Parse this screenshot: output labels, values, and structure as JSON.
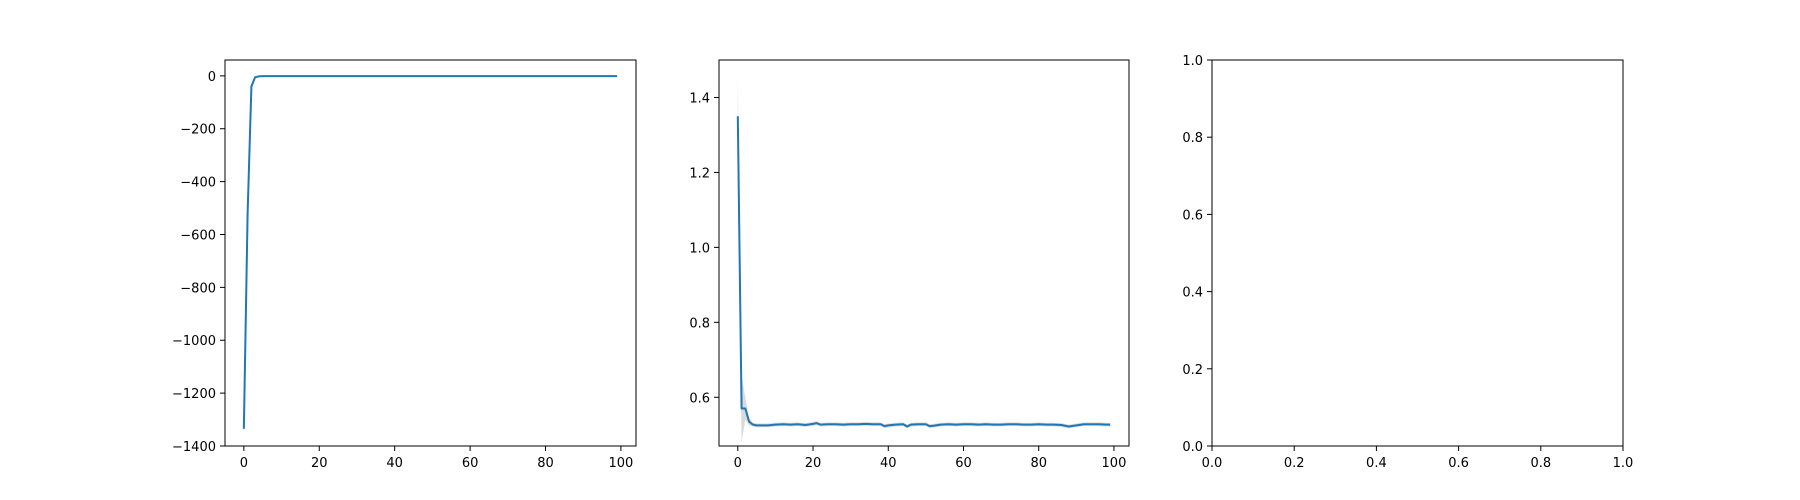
{
  "chart_data": [
    {
      "type": "line",
      "xlim": [
        -5,
        104
      ],
      "ylim": [
        -1400,
        60
      ],
      "xticks": [
        0,
        20,
        40,
        60,
        80,
        100
      ],
      "xtick_labels": [
        "0",
        "20",
        "40",
        "60",
        "80",
        "100"
      ],
      "yticks": [
        0,
        -200,
        -400,
        -600,
        -800,
        -1000,
        -1200,
        -1400
      ],
      "ytick_labels": [
        "0",
        "−200",
        "−400",
        "−600",
        "−800",
        "−1000",
        "−1200",
        "−1400"
      ],
      "line_color": "#1f77b4",
      "series": [
        {
          "x": [
            0,
            1,
            2,
            3,
            4,
            5,
            6,
            8,
            10,
            15,
            20,
            25,
            30,
            35,
            40,
            45,
            50,
            55,
            60,
            65,
            70,
            75,
            80,
            85,
            90,
            95,
            99
          ],
          "y": [
            -1335,
            -520,
            -40,
            -5,
            -2,
            -1,
            -1,
            -1,
            -1,
            -1,
            -1,
            -1,
            -1,
            -1,
            -1,
            -1,
            -1,
            -1,
            -1,
            -1,
            -1,
            -1,
            -1,
            -1,
            -1,
            -1,
            -1
          ]
        }
      ]
    },
    {
      "type": "line",
      "xlim": [
        -5,
        104
      ],
      "ylim": [
        0.47,
        1.5
      ],
      "xticks": [
        0,
        20,
        40,
        60,
        80,
        100
      ],
      "xtick_labels": [
        "0",
        "20",
        "40",
        "60",
        "80",
        "100"
      ],
      "yticks": [
        0.6,
        0.8,
        1.0,
        1.2,
        1.4
      ],
      "ytick_labels": [
        "0.6",
        "0.8",
        "1.0",
        "1.2",
        "1.4"
      ],
      "line_color": "#1f77b4",
      "band_color": "#d3d3d3",
      "series": [
        {
          "x": [
            0,
            1,
            2,
            3,
            4,
            5,
            6,
            8,
            10,
            12,
            14,
            16,
            18,
            20,
            21,
            22,
            24,
            26,
            28,
            30,
            32,
            34,
            36,
            38,
            39,
            40,
            42,
            44,
            45,
            46,
            48,
            50,
            51,
            52,
            54,
            56,
            58,
            60,
            62,
            64,
            66,
            68,
            70,
            72,
            74,
            76,
            78,
            80,
            82,
            84,
            86,
            88,
            90,
            92,
            94,
            96,
            98,
            99
          ],
          "y": [
            1.35,
            0.57,
            0.57,
            0.535,
            0.527,
            0.525,
            0.525,
            0.525,
            0.527,
            0.528,
            0.527,
            0.528,
            0.526,
            0.529,
            0.531,
            0.527,
            0.528,
            0.528,
            0.527,
            0.528,
            0.528,
            0.529,
            0.528,
            0.528,
            0.523,
            0.525,
            0.527,
            0.528,
            0.522,
            0.527,
            0.528,
            0.528,
            0.523,
            0.524,
            0.527,
            0.528,
            0.527,
            0.528,
            0.528,
            0.527,
            0.528,
            0.527,
            0.527,
            0.528,
            0.528,
            0.527,
            0.527,
            0.528,
            0.527,
            0.527,
            0.526,
            0.522,
            0.525,
            0.528,
            0.528,
            0.528,
            0.527,
            0.527
          ],
          "band_upper": [
            1.45,
            0.66,
            0.6,
            0.545,
            0.532,
            0.53,
            0.53,
            0.53,
            0.532,
            0.533,
            0.532,
            0.533,
            0.531,
            0.534,
            0.536,
            0.532,
            0.533,
            0.533,
            0.532,
            0.533,
            0.533,
            0.534,
            0.533,
            0.533,
            0.528,
            0.53,
            0.532,
            0.533,
            0.527,
            0.532,
            0.533,
            0.533,
            0.528,
            0.529,
            0.532,
            0.533,
            0.532,
            0.533,
            0.533,
            0.532,
            0.533,
            0.532,
            0.532,
            0.533,
            0.533,
            0.532,
            0.532,
            0.533,
            0.532,
            0.532,
            0.531,
            0.527,
            0.53,
            0.533,
            0.533,
            0.533,
            0.532,
            0.532
          ],
          "band_lower": [
            1.25,
            0.48,
            0.54,
            0.525,
            0.522,
            0.52,
            0.52,
            0.52,
            0.522,
            0.523,
            0.522,
            0.523,
            0.521,
            0.524,
            0.526,
            0.522,
            0.523,
            0.523,
            0.522,
            0.523,
            0.523,
            0.524,
            0.523,
            0.523,
            0.518,
            0.52,
            0.522,
            0.523,
            0.517,
            0.522,
            0.523,
            0.523,
            0.518,
            0.519,
            0.522,
            0.523,
            0.522,
            0.523,
            0.523,
            0.522,
            0.523,
            0.522,
            0.522,
            0.523,
            0.523,
            0.522,
            0.522,
            0.523,
            0.522,
            0.522,
            0.521,
            0.517,
            0.52,
            0.523,
            0.523,
            0.523,
            0.522,
            0.522
          ]
        }
      ]
    },
    {
      "type": "line",
      "xlim": [
        0,
        1
      ],
      "ylim": [
        0,
        1
      ],
      "xticks": [
        0,
        0.2,
        0.4,
        0.6,
        0.8,
        1.0
      ],
      "xtick_labels": [
        "0.0",
        "0.2",
        "0.4",
        "0.6",
        "0.8",
        "1.0"
      ],
      "yticks": [
        0,
        0.2,
        0.4,
        0.6,
        0.8,
        1.0
      ],
      "ytick_labels": [
        "0.0",
        "0.2",
        "0.4",
        "0.6",
        "0.8",
        "1.0"
      ],
      "series": []
    }
  ]
}
